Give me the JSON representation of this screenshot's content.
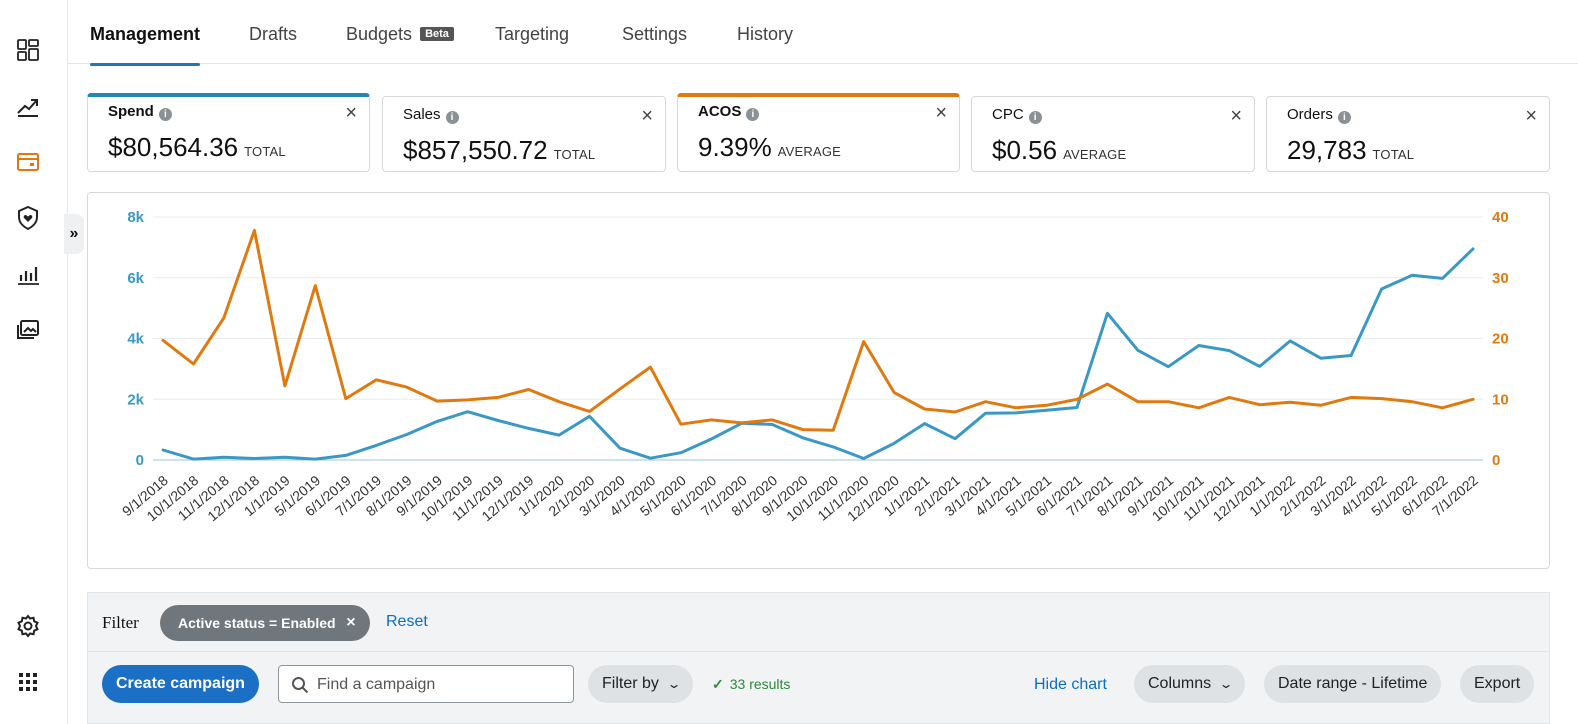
{
  "sidebar": {
    "icons": [
      "dashboard-icon",
      "trending-up-icon",
      "campaign-icon",
      "shield-heart-icon",
      "bar-chart-icon",
      "image-gallery-icon",
      "settings-icon",
      "apps-grid-icon"
    ],
    "expand_label": "»"
  },
  "tabs": [
    {
      "label": "Management",
      "active": true
    },
    {
      "label": "Drafts"
    },
    {
      "label": "Budgets",
      "badge": "Beta"
    },
    {
      "label": "Targeting"
    },
    {
      "label": "Settings"
    },
    {
      "label": "History"
    }
  ],
  "metrics": [
    {
      "label": "Spend",
      "value": "$80,564.36",
      "unit": "TOTAL",
      "selected_color": "#1f86b6"
    },
    {
      "label": "Sales",
      "value": "$857,550.72",
      "unit": "TOTAL"
    },
    {
      "label": "ACOS",
      "value": "9.39%",
      "unit": "AVERAGE",
      "selected_color": "#e07a10"
    },
    {
      "label": "CPC",
      "value": "$0.56",
      "unit": "AVERAGE"
    },
    {
      "label": "Orders",
      "value": "29,783",
      "unit": "TOTAL"
    }
  ],
  "close_glyph": "×",
  "chart_data": {
    "type": "line",
    "x": [
      "9/1/2018",
      "10/1/2018",
      "11/1/2018",
      "12/1/2018",
      "1/1/2019",
      "5/1/2019",
      "6/1/2019",
      "7/1/2019",
      "8/1/2019",
      "9/1/2019",
      "10/1/2019",
      "11/1/2019",
      "12/1/2019",
      "1/1/2020",
      "2/1/2020",
      "3/1/2020",
      "4/1/2020",
      "5/1/2020",
      "6/1/2020",
      "7/1/2020",
      "8/1/2020",
      "9/1/2020",
      "10/1/2020",
      "11/1/2020",
      "12/1/2020",
      "1/1/2021",
      "2/1/2021",
      "3/1/2021",
      "4/1/2021",
      "5/1/2021",
      "6/1/2021",
      "7/1/2021",
      "8/1/2021",
      "9/1/2021",
      "10/1/2021",
      "11/1/2021",
      "12/1/2021",
      "1/1/2022",
      "2/1/2022",
      "3/1/2022",
      "4/1/2022",
      "5/1/2022",
      "6/1/2022",
      "7/1/2022"
    ],
    "series": [
      {
        "name": "Spend",
        "axis": "left",
        "color": "#3a99c4",
        "values": [
          330,
          30,
          90,
          50,
          90,
          30,
          150,
          480,
          840,
          1270,
          1590,
          1300,
          1040,
          820,
          1440,
          390,
          60,
          240,
          690,
          1210,
          1170,
          730,
          430,
          50,
          550,
          1200,
          700,
          1540,
          1550,
          1640,
          1730,
          4830,
          3610,
          3070,
          3770,
          3600,
          3080,
          3920,
          3350,
          3440,
          5630,
          6080,
          5980,
          6950
        ]
      },
      {
        "name": "ACOS",
        "axis": "right",
        "color": "#e07a10",
        "values": [
          19.7,
          15.8,
          23.4,
          37.8,
          12.2,
          28.7,
          10.1,
          13.2,
          12.0,
          9.7,
          9.9,
          10.3,
          11.6,
          9.6,
          8.0,
          11.7,
          15.3,
          5.9,
          6.6,
          6.1,
          6.6,
          5.0,
          4.9,
          19.5,
          11.1,
          8.4,
          7.9,
          9.6,
          8.6,
          9.0,
          10.0,
          12.5,
          9.6,
          9.6,
          8.6,
          10.3,
          9.1,
          9.5,
          9.0,
          10.3,
          10.1,
          9.6,
          8.6,
          10.0
        ]
      }
    ],
    "y_left": {
      "ticks": [
        "0",
        "2k",
        "4k",
        "6k",
        "8k"
      ],
      "range": [
        0,
        8000
      ]
    },
    "y_right": {
      "ticks": [
        "0",
        "10",
        "20",
        "30",
        "40"
      ],
      "range": [
        0,
        40
      ]
    },
    "grid": true
  },
  "filter": {
    "label": "Filter",
    "chip": "Active status = Enabled",
    "chip_close": "×",
    "reset": "Reset"
  },
  "toolbar": {
    "create": "Create campaign",
    "search_placeholder": "Find a campaign",
    "filter_by": "Filter by",
    "results": "33 results",
    "results_check": "✓",
    "hide_chart": "Hide chart",
    "columns": "Columns",
    "date_range": "Date range - Lifetime",
    "export": "Export",
    "chevron": "⌄"
  }
}
